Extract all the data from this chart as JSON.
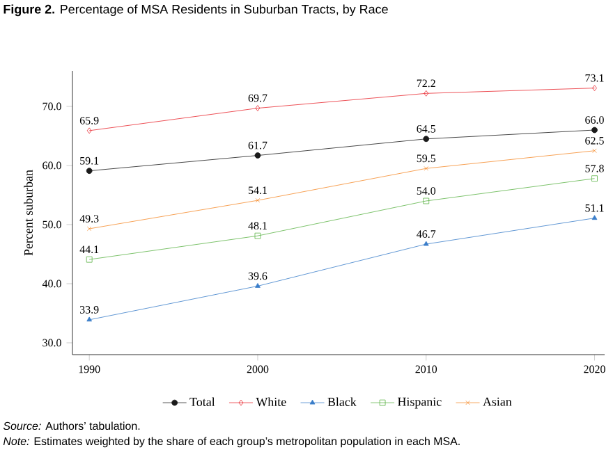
{
  "chart_data": {
    "type": "line",
    "title": "**Figure 2.** Percentage of MSA Residents in Suburban Tracts, by Race",
    "ylabel": "Percent suburban",
    "x": [
      1990,
      2000,
      2010,
      2020
    ],
    "series": [
      {
        "name": "Total",
        "color": "#1a1a1a",
        "marker": "circle",
        "values": [
          59.1,
          61.7,
          64.5,
          66.0
        ],
        "value_labels": [
          "59.1",
          "61.7",
          "64.5",
          "66.0"
        ]
      },
      {
        "name": "White",
        "color": "#e8262d",
        "marker": "diamond",
        "values": [
          65.9,
          69.7,
          72.2,
          73.1
        ],
        "value_labels": [
          "65.9",
          "69.7",
          "72.2",
          "73.1"
        ]
      },
      {
        "name": "Black",
        "color": "#3a7dc9",
        "marker": "triangle",
        "values": [
          33.9,
          39.6,
          46.7,
          51.1
        ],
        "value_labels": [
          "33.9",
          "39.6",
          "46.7",
          "51.1"
        ]
      },
      {
        "name": "Hispanic",
        "color": "#5db448",
        "marker": "square",
        "values": [
          44.1,
          48.1,
          54.0,
          57.8
        ],
        "value_labels": [
          "44.1",
          "48.1",
          "54.0",
          "57.8"
        ]
      },
      {
        "name": "Asian",
        "color": "#f58a2b",
        "marker": "cross",
        "values": [
          49.3,
          54.1,
          59.5,
          62.5
        ],
        "value_labels": [
          "49.3",
          "54.1",
          "59.5",
          "62.5"
        ]
      }
    ],
    "xlim": [
      1989,
      2020.6
    ],
    "xticks": [
      1990,
      2000,
      2010,
      2020
    ],
    "ylim": [
      28,
      76
    ],
    "yticks": [
      {
        "value": 30,
        "label": "30.0"
      },
      {
        "value": 40,
        "label": "40.0"
      },
      {
        "value": 50,
        "label": "50.0"
      },
      {
        "value": 60,
        "label": "60.0"
      },
      {
        "value": 70,
        "label": "70.0"
      }
    ],
    "grid": false,
    "legend": "bottom",
    "annotations": [
      "*Source:* Authors’ tabulation.",
      "*Note:* Estimates weighted by the share of each group’s metropolitan population in each MSA."
    ]
  }
}
